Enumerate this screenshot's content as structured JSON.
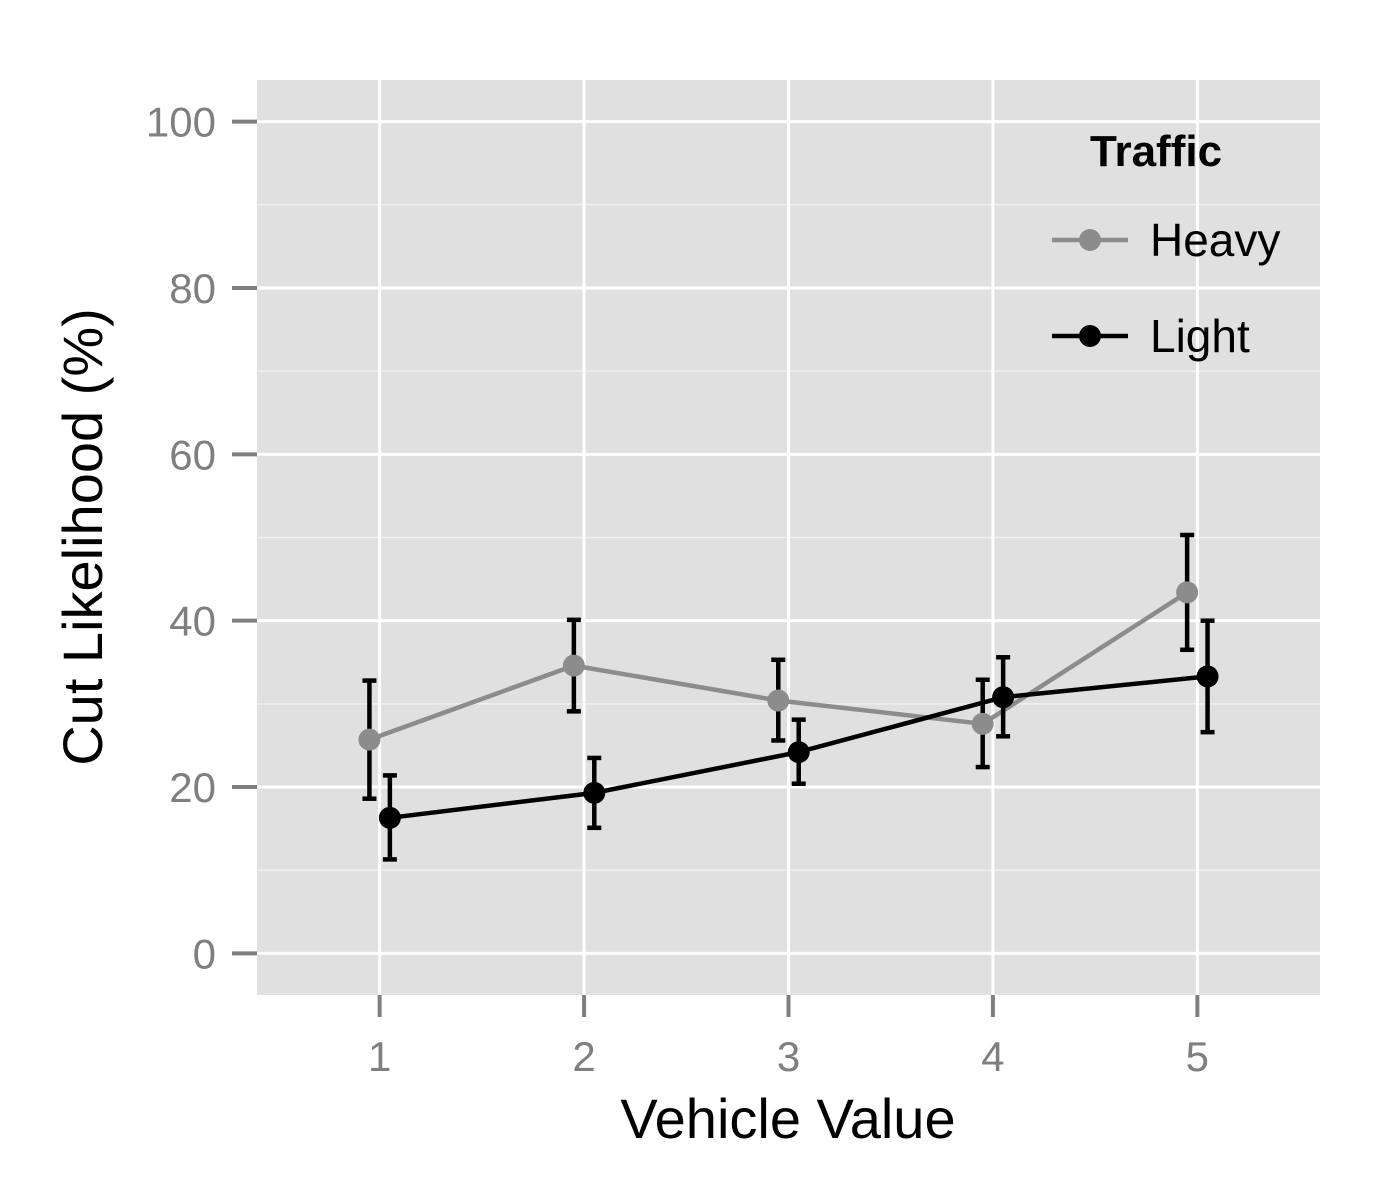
{
  "chart_data": {
    "type": "line",
    "xlabel": "Vehicle Value",
    "ylabel": "Cut Likelihood (%)",
    "x": [
      1,
      2,
      3,
      4,
      5
    ],
    "x_tick_labels": [
      "1",
      "2",
      "3",
      "4",
      "5"
    ],
    "xlim": [
      0.4,
      5.6
    ],
    "ylim": [
      -5,
      105
    ],
    "y_ticks": [
      0,
      20,
      40,
      60,
      80,
      100
    ],
    "y_tick_labels": [
      "0",
      "20",
      "40",
      "60",
      "80",
      "100"
    ],
    "grid": true,
    "legend": {
      "title": "Traffic",
      "position": "top-right"
    },
    "error_bars": true,
    "series": [
      {
        "name": "Heavy",
        "color": "#8c8c8c",
        "values": [
          25.7,
          34.6,
          30.4,
          27.6,
          43.4
        ],
        "lower": [
          18.6,
          29.1,
          25.6,
          22.4,
          36.5
        ],
        "upper": [
          32.8,
          40.1,
          35.3,
          32.9,
          50.3
        ]
      },
      {
        "name": "Light",
        "color": "#000000",
        "values": [
          16.3,
          19.3,
          24.2,
          30.8,
          33.3
        ],
        "lower": [
          11.3,
          15.1,
          20.4,
          26.1,
          26.6
        ],
        "upper": [
          21.4,
          23.5,
          28.1,
          35.6,
          40.0
        ]
      }
    ]
  }
}
